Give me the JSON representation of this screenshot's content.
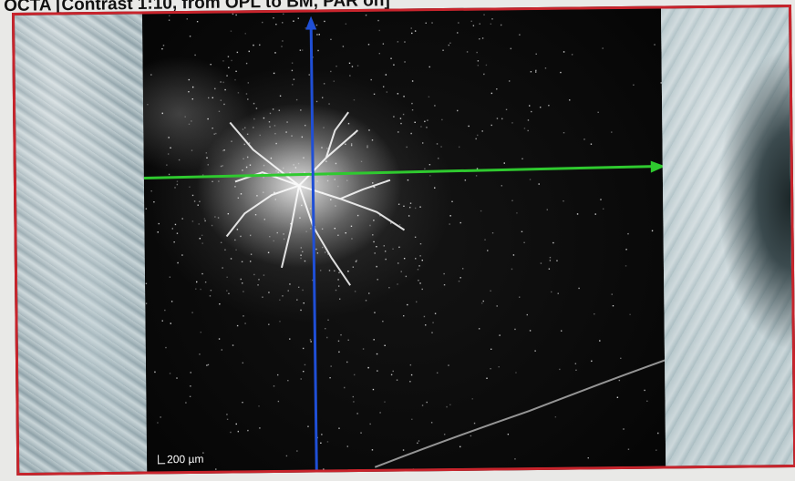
{
  "title": "OCTA [Contrast 1:10, from OPL to BM, PAR on]",
  "scale_bar": {
    "label": "200 µm",
    "icon": "scale-bar-icon"
  },
  "colors": {
    "frame_border": "#c8242c",
    "horizontal_cursor": "#2fc92f",
    "vertical_cursor": "#1f4fd6"
  }
}
